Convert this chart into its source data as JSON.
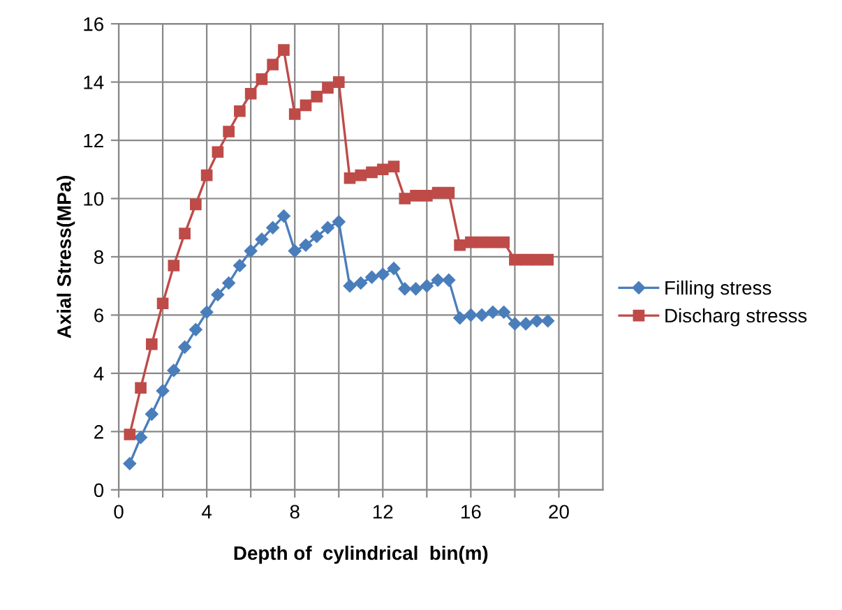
{
  "chart_data": {
    "type": "line",
    "xlabel": "Depth of  cylindrical  bin(m)",
    "ylabel": "Axial Stress(MPa)",
    "x": [
      0.5,
      1,
      1.5,
      2,
      2.5,
      3,
      3.5,
      4,
      4.5,
      5,
      5.5,
      6,
      6.5,
      7,
      7.5,
      8,
      8.5,
      9,
      9.5,
      10,
      10.5,
      11,
      11.5,
      12,
      12.5,
      13,
      13.5,
      14,
      14.5,
      15,
      15.5,
      16,
      16.5,
      17,
      17.5,
      18,
      18.5,
      19,
      19.5
    ],
    "series": [
      {
        "name": "Filling stress",
        "color": "#4a7ebb",
        "marker": "diamond",
        "values": [
          0.9,
          1.8,
          2.6,
          3.4,
          4.1,
          4.9,
          5.5,
          6.1,
          6.7,
          7.1,
          7.7,
          8.2,
          8.6,
          9.0,
          9.4,
          8.2,
          8.4,
          8.7,
          9.0,
          9.2,
          7.0,
          7.1,
          7.3,
          7.4,
          7.6,
          6.9,
          6.9,
          7.0,
          7.2,
          7.2,
          5.9,
          6.0,
          6.0,
          6.1,
          6.1,
          5.7,
          5.7,
          5.8,
          5.8
        ]
      },
      {
        "name": "Discharg stresss",
        "color": "#be4b48",
        "marker": "square",
        "values": [
          1.9,
          3.5,
          5.0,
          6.4,
          7.7,
          8.8,
          9.8,
          10.8,
          11.6,
          12.3,
          13.0,
          13.6,
          14.1,
          14.6,
          15.1,
          12.9,
          13.2,
          13.5,
          13.8,
          14.0,
          10.7,
          10.8,
          10.9,
          11.0,
          11.1,
          10.0,
          10.1,
          10.1,
          10.2,
          10.2,
          8.4,
          8.5,
          8.5,
          8.5,
          8.5,
          7.9,
          7.9,
          7.9,
          7.9
        ]
      }
    ],
    "xlim": [
      0,
      22
    ],
    "ylim": [
      0,
      16
    ],
    "xticks": [
      0,
      {
        "value": 2,
        "label": null
      },
      4,
      {
        "value": 6,
        "label": null
      },
      8,
      {
        "value": 10,
        "label": null
      },
      12,
      {
        "value": 14,
        "label": null
      },
      16,
      {
        "value": 18,
        "label": null
      },
      20
    ],
    "yticks": [
      0,
      2,
      4,
      6,
      8,
      10,
      12,
      14,
      16
    ],
    "grid": true,
    "legend": "right",
    "line_style": "solid"
  }
}
